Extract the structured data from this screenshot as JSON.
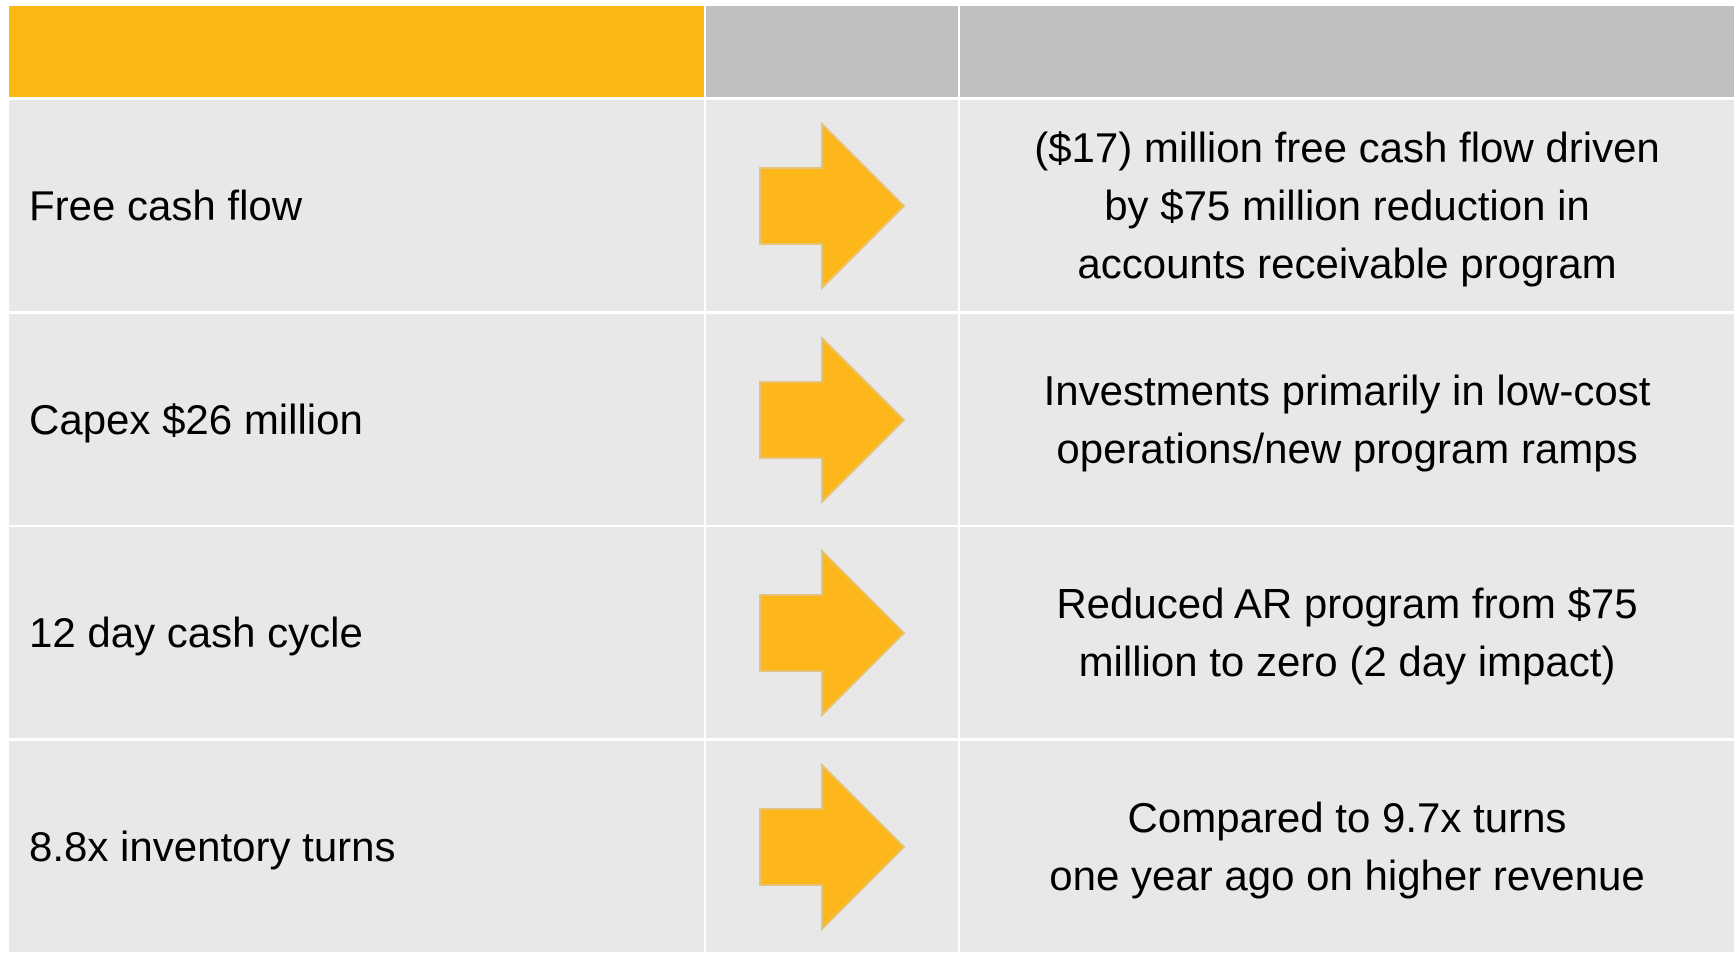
{
  "table": {
    "rows": [
      {
        "label": "Free cash flow",
        "detail": [
          "($17) million free cash flow driven",
          "by $75 million reduction in",
          "accounts receivable program"
        ]
      },
      {
        "label": "Capex $26 million",
        "detail": [
          "Investments primarily in low-cost",
          "operations/new program ramps"
        ]
      },
      {
        "label": "12 day cash cycle",
        "detail": [
          "Reduced AR program from $75",
          "million to zero (2 day impact)"
        ]
      },
      {
        "label": "8.8x inventory turns",
        "detail": [
          "Compared to 9.7x turns",
          "one year ago on higher revenue"
        ]
      }
    ]
  }
}
